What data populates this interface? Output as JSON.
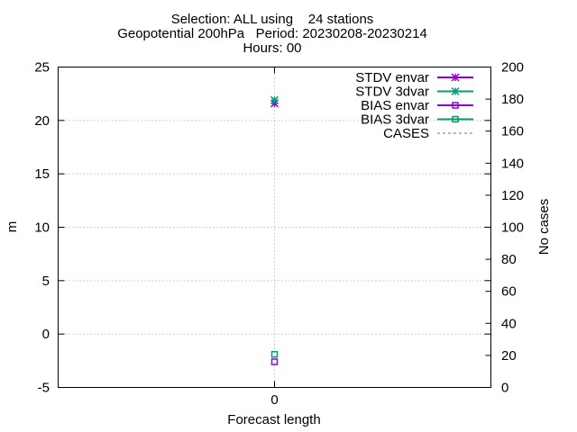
{
  "chart_data": {
    "type": "scatter",
    "title_lines": [
      "Selection: ALL using    24 stations",
      "Geopotential 200hPa   Period: 20230208-20230214",
      "Hours: 00"
    ],
    "xlabel": "Forecast length",
    "ylabel": "m",
    "y2label": "No cases",
    "x_categories": [
      "0"
    ],
    "ylim": [
      -5,
      25
    ],
    "yticks": [
      -5,
      0,
      5,
      10,
      15,
      20,
      25
    ],
    "y2lim": [
      0,
      200
    ],
    "y2ticks": [
      0,
      20,
      40,
      60,
      80,
      100,
      120,
      140,
      160,
      180,
      200
    ],
    "grid": true,
    "legend_position": "top-right",
    "series": [
      {
        "name": "STDV envar",
        "color": "#9400d3",
        "marker": "star",
        "axis": "y",
        "x": [
          "0"
        ],
        "values": [
          21.6
        ]
      },
      {
        "name": "STDV 3dvar",
        "color": "#009e73",
        "marker": "star",
        "axis": "y",
        "x": [
          "0"
        ],
        "values": [
          21.9
        ]
      },
      {
        "name": "BIAS envar",
        "color": "#9400d3",
        "marker": "square",
        "axis": "y",
        "x": [
          "0"
        ],
        "values": [
          -2.6
        ]
      },
      {
        "name": "BIAS 3dvar",
        "color": "#009e73",
        "marker": "square",
        "axis": "y",
        "x": [
          "0"
        ],
        "values": [
          -1.9
        ]
      },
      {
        "name": "CASES",
        "color": "#a0a0a0",
        "marker": "dashed",
        "axis": "y2",
        "x": [],
        "values": []
      }
    ]
  }
}
